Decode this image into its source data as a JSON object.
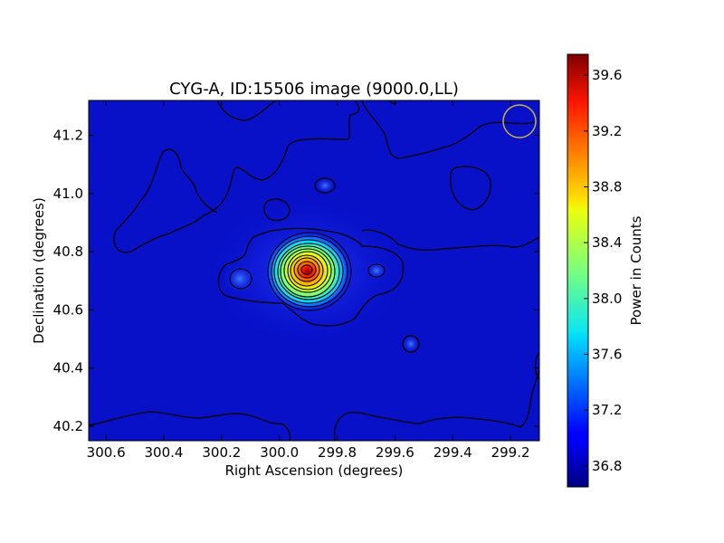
{
  "chart_data": {
    "type": "heatmap",
    "title": "CYG-A, ID:15506 image (9000.0,LL)",
    "xlabel": "Right Ascension (degrees)",
    "ylabel": "Declination (degrees)",
    "x_ticks": [
      "300.6",
      "300.4",
      "300.2",
      "300.0",
      "299.8",
      "299.6",
      "299.4",
      "299.2"
    ],
    "y_ticks": [
      "40.2",
      "40.4",
      "40.6",
      "40.8",
      "41.0",
      "41.2"
    ],
    "xlim": [
      300.66,
      299.1
    ],
    "ylim": [
      40.15,
      41.32
    ],
    "colorbar": {
      "label": "Power in Counts",
      "ticks": [
        "36.8",
        "37.2",
        "37.6",
        "38.0",
        "38.4",
        "38.8",
        "39.2",
        "39.6"
      ],
      "range": [
        36.65,
        39.75
      ],
      "colormap": "jet"
    },
    "peak": {
      "ra": 299.87,
      "dec": 40.73,
      "value": 39.75
    },
    "secondary_blobs": [
      {
        "ra": 300.1,
        "dec": 40.7
      },
      {
        "ra": 299.66,
        "dec": 40.73
      },
      {
        "ra": 299.56,
        "dec": 40.52
      },
      {
        "ra": 299.84,
        "dec": 41.03
      }
    ],
    "beam_circle": {
      "ra": 299.16,
      "dec": 41.25,
      "color": "#c8b040"
    },
    "background_color": "#0a14d6",
    "contour_color": "#000000"
  }
}
